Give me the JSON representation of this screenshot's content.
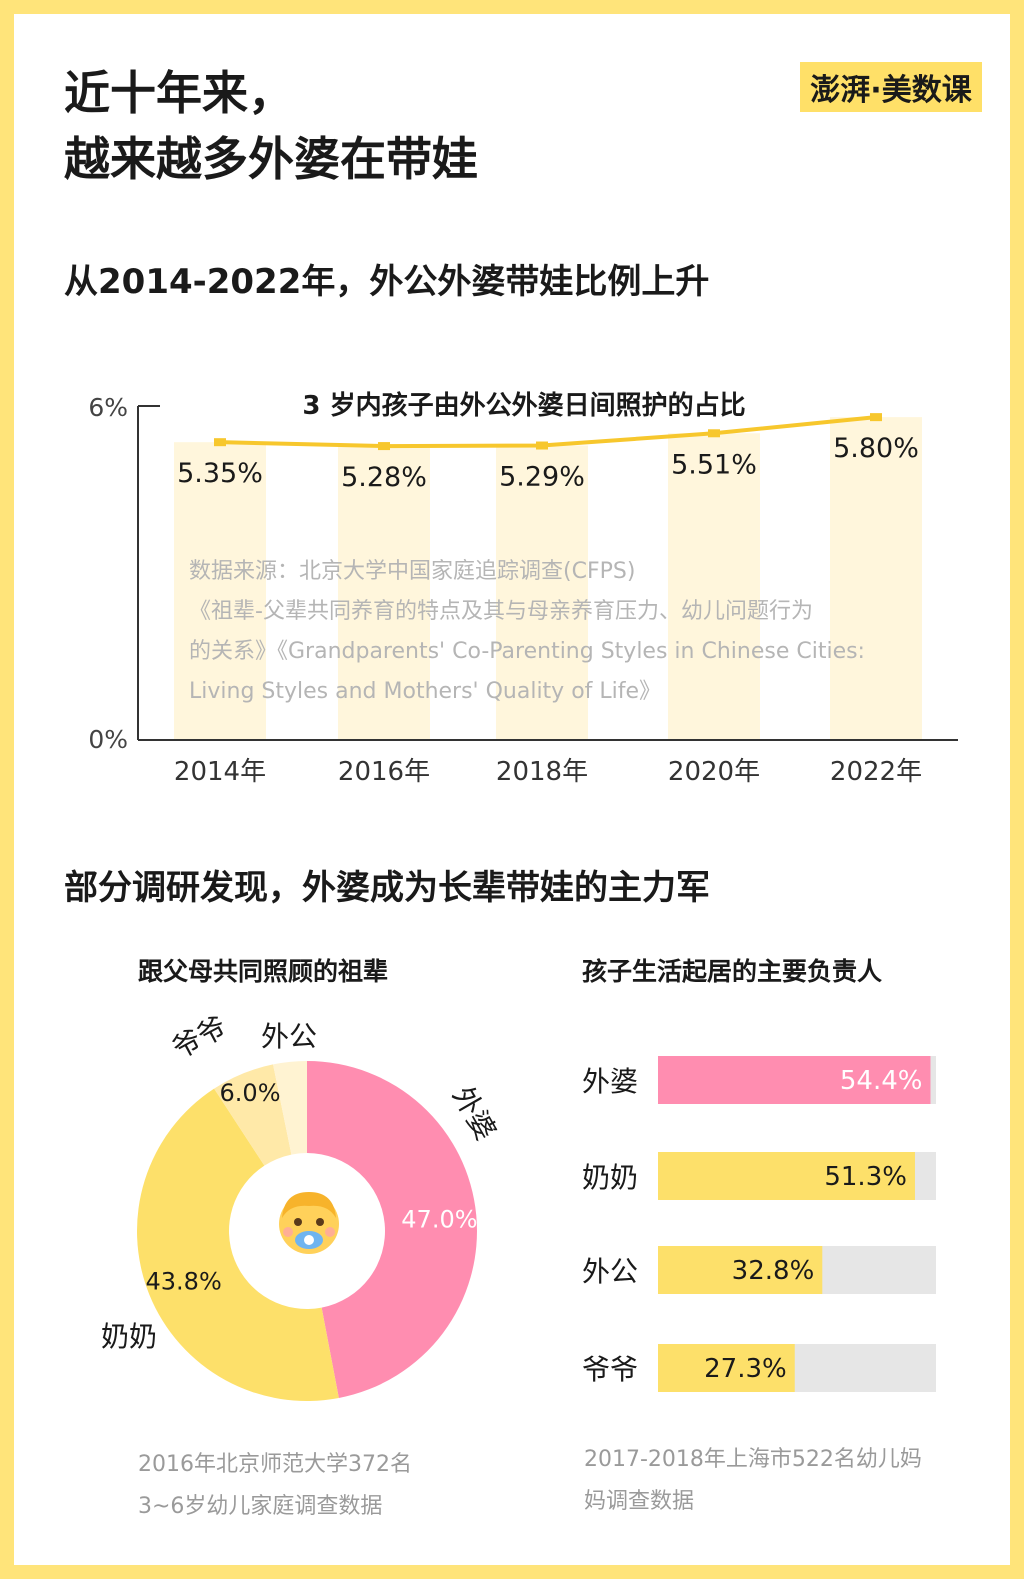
{
  "header": {
    "headline_line1": "近十年来，",
    "headline_line2": "越来越多外婆在带娃",
    "logo_text": "澎湃·美数课"
  },
  "section1": {
    "title": "从2014-2022年，外公外婆带娃比例上升",
    "source_lines": [
      "数据来源：北京大学中国家庭追踪调查(CFPS)",
      "《祖辈-父辈共同养育的特点及其与母亲养育压力、幼儿问题行为",
      "的关系》《Grandparents' Co-Parenting Styles in Chinese Cities:",
      "Living Styles and Mothers' Quality of Life》"
    ]
  },
  "section2": {
    "title": "部分调研发现，外婆成为长辈带娃的主力军",
    "left_footnote_lines": [
      "2016年北京师范大学372名",
      "3~6岁幼儿家庭调查数据"
    ],
    "right_footnote_lines": [
      "2017-2018年上海市522名幼儿妈",
      "妈调查数据"
    ]
  },
  "icons": {
    "baby": "baby-face-icon"
  },
  "colors": {
    "yellow": "#fde06a",
    "pink": "#ff8db0",
    "pale_yellow": "#fff6dc",
    "gray_track": "#e6e6e6",
    "line": "#f7c72d"
  },
  "chart_data": [
    {
      "type": "bar",
      "title": "3 岁内孩子由外公外婆日间照护的占比",
      "categories": [
        "2014年",
        "2016年",
        "2018年",
        "2020年",
        "2022年"
      ],
      "values": [
        5.35,
        5.28,
        5.29,
        5.51,
        5.8
      ],
      "value_labels": [
        "5.35%",
        "5.28%",
        "5.29%",
        "5.51%",
        "5.80%"
      ],
      "ylim": [
        0,
        6
      ],
      "y_ticks": [
        "0%",
        "6%"
      ],
      "overlay_line": true
    },
    {
      "type": "pie",
      "title": "跟父母共同照顾的祖辈",
      "labels": [
        "外婆",
        "奶奶",
        "爷爷",
        "外公"
      ],
      "values": [
        47.0,
        43.8,
        6.0,
        3.2
      ],
      "value_labels": [
        "47.0%",
        "43.8%",
        "6.0%",
        ""
      ]
    },
    {
      "type": "bar",
      "title": "孩子生活起居的主要负责人",
      "categories": [
        "外婆",
        "奶奶",
        "外公",
        "爷爷"
      ],
      "values": [
        54.4,
        51.3,
        32.8,
        27.3
      ],
      "value_labels": [
        "54.4%",
        "51.3%",
        "32.8%",
        "27.3%"
      ],
      "xlim": [
        0,
        55.5
      ]
    }
  ]
}
